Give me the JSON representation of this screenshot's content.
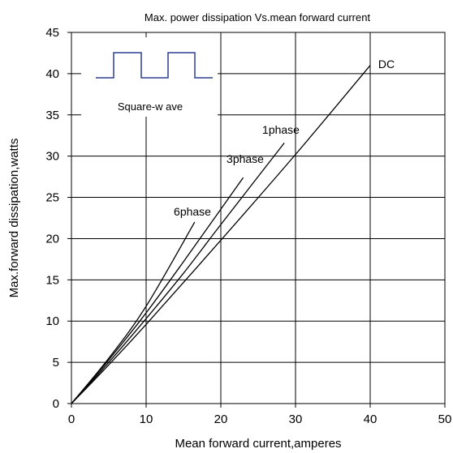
{
  "chart_data": {
    "type": "line",
    "title": "Max. power dissipation  Vs.mean forward current",
    "xlabel": "Mean forward  current,amperes",
    "ylabel": "Max.forward  dissipation,watts",
    "xlim": [
      0,
      50
    ],
    "ylim": [
      0,
      45
    ],
    "x_ticks": [
      "0",
      "10",
      "20",
      "30",
      "40",
      "50"
    ],
    "y_ticks": [
      "0",
      "5",
      "10",
      "15",
      "20",
      "25",
      "30",
      "35",
      "40",
      "45"
    ],
    "grid": true,
    "inset_label": "Square-w ave",
    "series": [
      {
        "name": "6phase",
        "points": [
          [
            0,
            0
          ],
          [
            5,
            5.5
          ],
          [
            10,
            11.8
          ],
          [
            16.5,
            22
          ]
        ]
      },
      {
        "name": "3phase",
        "points": [
          [
            0,
            0
          ],
          [
            5,
            5.3
          ],
          [
            10,
            11
          ],
          [
            15,
            17.2
          ],
          [
            23,
            27.4
          ]
        ]
      },
      {
        "name": "1phase",
        "points": [
          [
            0,
            0
          ],
          [
            5,
            5
          ],
          [
            10,
            10.3
          ],
          [
            15,
            15.8
          ],
          [
            20,
            21.7
          ],
          [
            28.5,
            31.6
          ]
        ]
      },
      {
        "name": "DC",
        "points": [
          [
            0,
            0
          ],
          [
            5,
            4.7
          ],
          [
            10,
            9.6
          ],
          [
            20,
            19.8
          ],
          [
            30,
            30.2
          ],
          [
            40,
            41
          ]
        ]
      }
    ]
  }
}
